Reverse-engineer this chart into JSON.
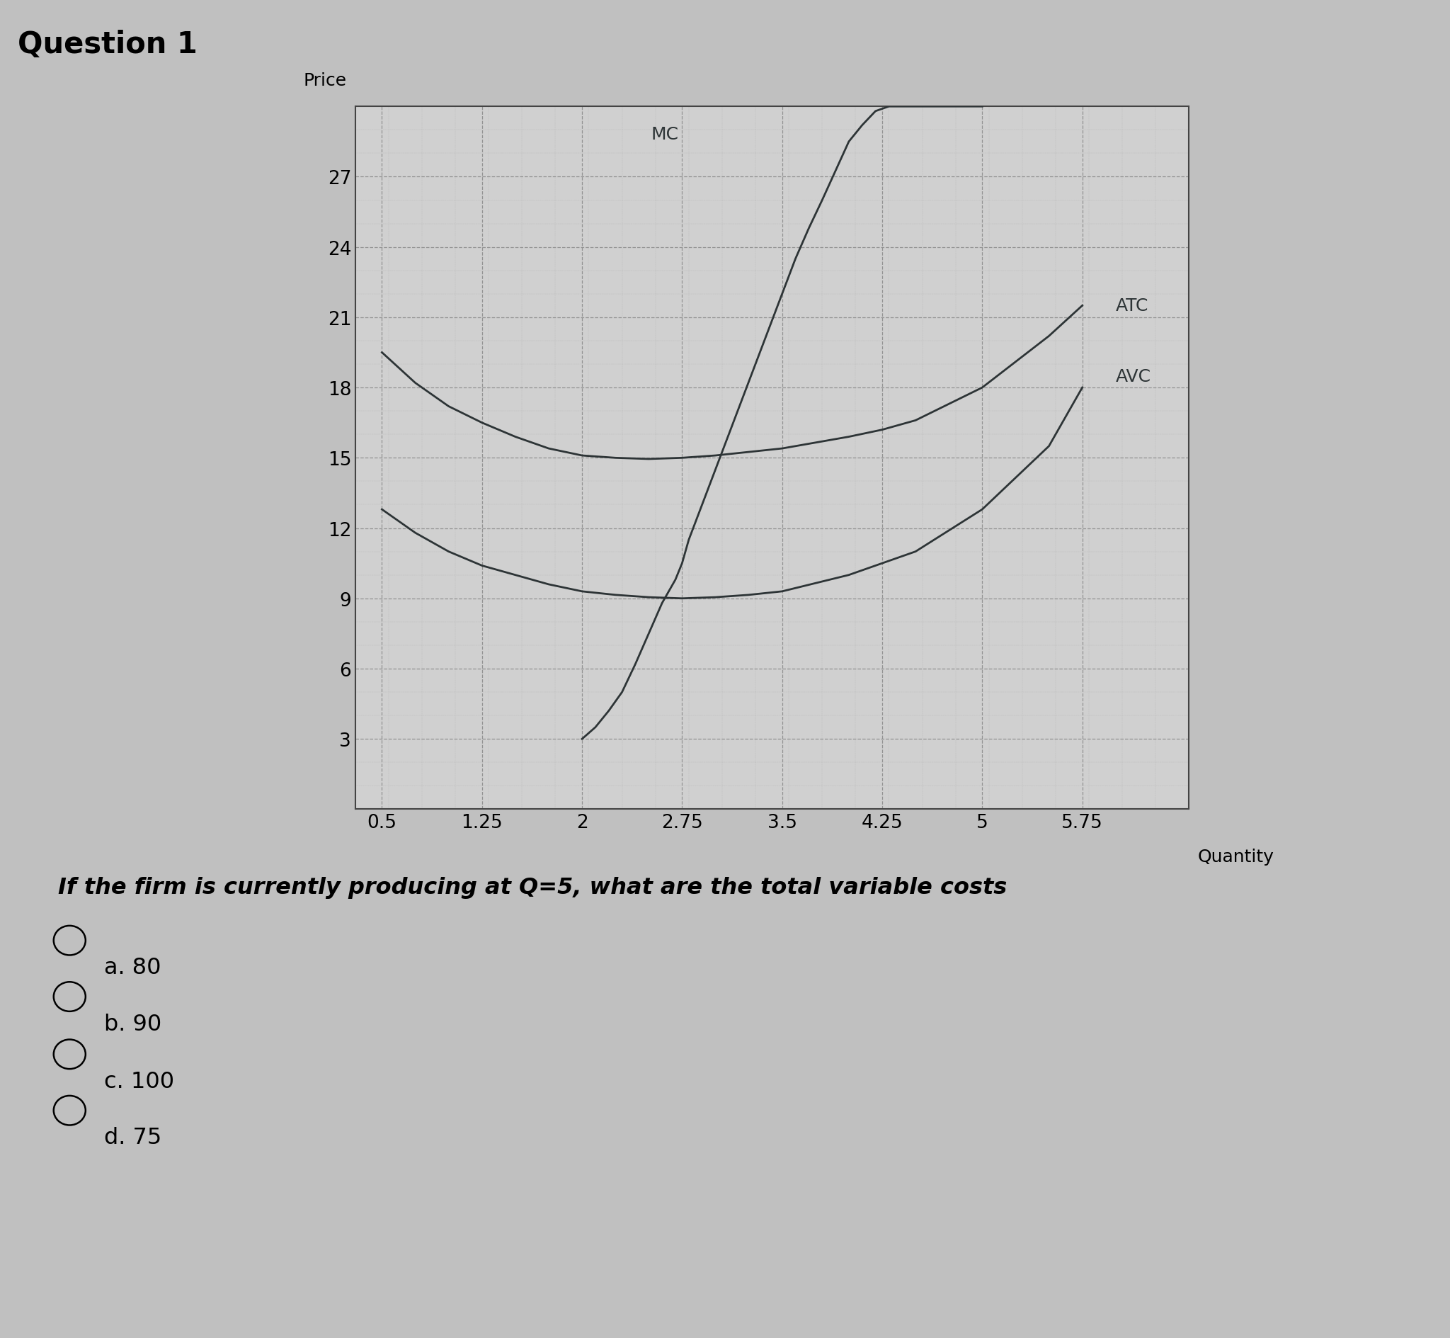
{
  "title": "Question 1",
  "ylabel": "Price",
  "xlabel": "Quantity",
  "y_ticks": [
    3,
    6,
    9,
    12,
    15,
    18,
    21,
    24,
    27
  ],
  "x_ticks": [
    0.5,
    1.25,
    2,
    2.75,
    3.5,
    4.25,
    5,
    5.75
  ],
  "ylim": [
    0,
    30
  ],
  "xlim": [
    0.3,
    6.5
  ],
  "page_bg_color": "#c0c0c0",
  "chart_bg_color": "#d0d0d0",
  "line_color": "#2d3436",
  "grid_major_color": "#888888",
  "grid_minor_color": "#aaaaaa",
  "question_text": "If the firm is currently producing at Q=5, what are the total variable costs",
  "choices": [
    "a. 80",
    "b. 90",
    "c. 100",
    "d. 75"
  ],
  "mc_label": "MC",
  "atc_label": "ATC",
  "avc_label": "AVC",
  "price_label": "Price",
  "q_atc": [
    0.5,
    0.75,
    1.0,
    1.25,
    1.5,
    1.75,
    2.0,
    2.25,
    2.5,
    2.75,
    3.0,
    3.5,
    4.0,
    4.25,
    4.5,
    5.0,
    5.5,
    5.75
  ],
  "p_atc": [
    19.5,
    18.2,
    17.2,
    16.5,
    15.9,
    15.4,
    15.1,
    15.0,
    14.95,
    15.0,
    15.1,
    15.4,
    15.9,
    16.2,
    16.6,
    18.0,
    20.2,
    21.5
  ],
  "q_avc": [
    0.5,
    0.75,
    1.0,
    1.25,
    1.5,
    1.75,
    2.0,
    2.25,
    2.5,
    2.75,
    3.0,
    3.25,
    3.5,
    4.0,
    4.25,
    4.5,
    5.0,
    5.5,
    5.75
  ],
  "p_avc": [
    12.8,
    11.8,
    11.0,
    10.4,
    10.0,
    9.6,
    9.3,
    9.15,
    9.05,
    9.0,
    9.05,
    9.15,
    9.3,
    10.0,
    10.5,
    11.0,
    12.8,
    15.5,
    18.0
  ],
  "q_mc": [
    2.0,
    2.1,
    2.2,
    2.3,
    2.4,
    2.5,
    2.6,
    2.7,
    2.75,
    2.8,
    2.9,
    3.0,
    3.1,
    3.2,
    3.3,
    3.4,
    3.5,
    3.6,
    3.7,
    3.8,
    4.0,
    4.1,
    4.2,
    4.3,
    4.4,
    4.5,
    4.6,
    4.7,
    4.8,
    4.9,
    5.0
  ],
  "p_mc": [
    3.0,
    3.5,
    4.2,
    5.0,
    6.2,
    7.5,
    8.8,
    9.8,
    10.5,
    11.5,
    13.0,
    14.5,
    16.0,
    17.5,
    19.0,
    20.5,
    22.0,
    23.5,
    24.8,
    26.0,
    28.5,
    29.2,
    29.8,
    30.0,
    30.0,
    30.0,
    30.0,
    30.0,
    30.0,
    30.0,
    30.0
  ]
}
